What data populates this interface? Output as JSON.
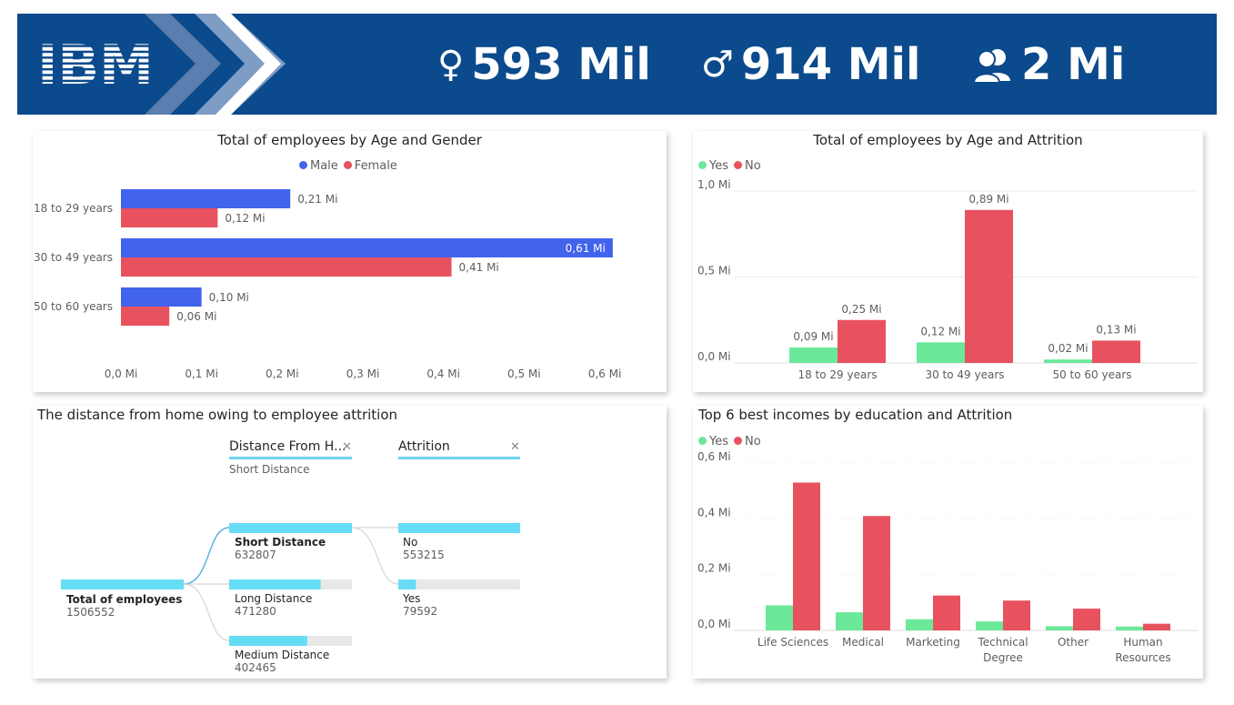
{
  "header": {
    "brand": "IBM",
    "kpis": [
      {
        "icon": "female-icon",
        "symbol": "♀",
        "value": "593 Mil"
      },
      {
        "icon": "male-icon",
        "symbol": "♂",
        "value": "914 Mil"
      },
      {
        "icon": "people-icon",
        "symbol": "👥",
        "value": "2 Mi"
      }
    ],
    "colors": {
      "banner": "#0b4a8c"
    }
  },
  "chart_data": [
    {
      "type": "bar",
      "orientation": "horizontal",
      "title": "Total of employees by Age and Gender",
      "categories": [
        "18 to 29 years",
        "30 to 49 years",
        "50 to 60 years"
      ],
      "series": [
        {
          "name": "Male",
          "color": "#4263eb",
          "values": [
            0.21,
            0.61,
            0.1
          ],
          "labels": [
            "0,21 Mi",
            "0,61 Mi",
            "0,10 Mi"
          ]
        },
        {
          "name": "Female",
          "color": "#e8525f",
          "values": [
            0.12,
            0.41,
            0.06
          ],
          "labels": [
            "0,12 Mi",
            "0,41 Mi",
            "0,06 Mi"
          ]
        }
      ],
      "xlim": [
        0,
        0.6
      ],
      "x_ticks": [
        0,
        0.1,
        0.2,
        0.3,
        0.4,
        0.5,
        0.6
      ],
      "x_tick_labels": [
        "0,0 Mi",
        "0,1 Mi",
        "0,2 Mi",
        "0,3 Mi",
        "0,4 Mi",
        "0,5 Mi",
        "0,6 Mi"
      ],
      "legend": "top-center",
      "grid": false
    },
    {
      "type": "bar",
      "title": "Total of employees by Age and Attrition",
      "categories": [
        "18 to 29 years",
        "30 to 49 years",
        "50 to 60 years"
      ],
      "series": [
        {
          "name": "Yes",
          "color": "#6ce89a",
          "values": [
            0.09,
            0.12,
            0.02
          ],
          "labels": [
            "0,09 Mi",
            "0,12 Mi",
            "0,02 Mi"
          ]
        },
        {
          "name": "No",
          "color": "#e8525f",
          "values": [
            0.25,
            0.89,
            0.13
          ],
          "labels": [
            "0,25 Mi",
            "0,89 Mi",
            "0,13 Mi"
          ]
        }
      ],
      "ylim": [
        0,
        1.0
      ],
      "y_ticks": [
        0,
        0.5,
        1.0
      ],
      "y_tick_labels": [
        "0,0 Mi",
        "0,5 Mi",
        "1,0 Mi"
      ],
      "legend": "top-left",
      "grid": true
    },
    {
      "type": "bar",
      "title": "Top 6 best incomes by education and Attrition",
      "categories": [
        "Life Sciences",
        "Medical",
        "Marketing",
        "Technical Degree",
        "Other",
        "Human Resources"
      ],
      "category_lines": [
        [
          "Life Sciences"
        ],
        [
          "Medical"
        ],
        [
          "Marketing"
        ],
        [
          "Technical",
          "Degree"
        ],
        [
          "Other"
        ],
        [
          "Human",
          "Resources"
        ]
      ],
      "series": [
        {
          "name": "Yes",
          "color": "#6ce89a",
          "values": [
            0.09,
            0.065,
            0.04,
            0.032,
            0.015,
            0.014
          ]
        },
        {
          "name": "No",
          "color": "#e8525f",
          "values": [
            0.53,
            0.41,
            0.125,
            0.107,
            0.078,
            0.024
          ]
        }
      ],
      "ylim": [
        0,
        0.6
      ],
      "y_ticks": [
        0,
        0.2,
        0.4,
        0.6
      ],
      "y_tick_labels": [
        "0,0 Mi",
        "0,2 Mi",
        "0,4 Mi",
        "0,6 Mi"
      ],
      "legend": "top-left",
      "grid": true
    }
  ],
  "decomposition": {
    "title": "The distance from home owing to employee attrition",
    "root": {
      "label": "Total of employees",
      "value": "1506552",
      "amount": 1506552
    },
    "level1": {
      "header": "Distance From H...",
      "subtitle": "Short Distance",
      "nodes": [
        {
          "label": "Short Distance",
          "value": "632807",
          "amount": 632807,
          "selected": true
        },
        {
          "label": "Long Distance",
          "value": "471280",
          "amount": 471280,
          "selected": false
        },
        {
          "label": "Medium Distance",
          "value": "402465",
          "amount": 402465,
          "selected": false
        }
      ]
    },
    "level2": {
      "header": "Attrition",
      "nodes": [
        {
          "label": "No",
          "value": "553215",
          "amount": 553215
        },
        {
          "label": "Yes",
          "value": "79592",
          "amount": 79592
        }
      ]
    },
    "colors": {
      "bar": "#67dcf5",
      "track": "#e8e8e8",
      "link": "#cccccc",
      "active_link": "#5ab4e0"
    }
  }
}
